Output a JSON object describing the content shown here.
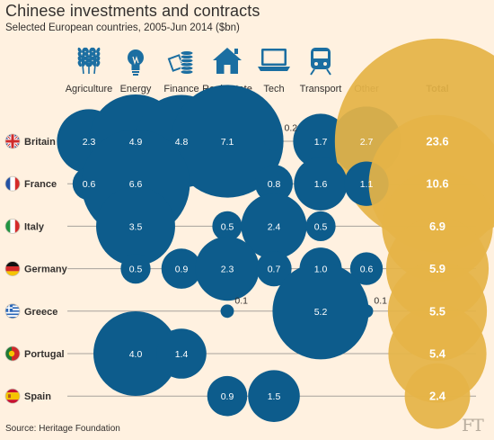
{
  "title": "Chinese investments and contracts",
  "subtitle": "Selected European countries, 2005-Jun 2014 ($bn)",
  "source": "Source: Heritage Foundation",
  "logo": "FT",
  "colors": {
    "background": "#fff1e0",
    "bubble": "#0d5c8c",
    "total_bubble": "#e5b447",
    "icon": "#1b6ea1",
    "line": "#a7a29c",
    "text": "#33302e",
    "logo": "#b8ad9e"
  },
  "chart_data": {
    "type": "bubble-matrix",
    "title": "Chinese investments and contracts",
    "subtitle": "Selected European countries, 2005-Jun 2014 ($bn)",
    "columns": [
      {
        "key": "agriculture",
        "label": "Agriculture",
        "icon": "wheat-icon"
      },
      {
        "key": "energy",
        "label": "Energy",
        "icon": "lightbulb-icon"
      },
      {
        "key": "finance",
        "label": "Finance",
        "icon": "money-icon"
      },
      {
        "key": "real_estate",
        "label": "Real estate",
        "icon": "house-icon"
      },
      {
        "key": "tech",
        "label": "Tech",
        "icon": "laptop-icon"
      },
      {
        "key": "transport",
        "label": "Transport",
        "icon": "train-icon"
      },
      {
        "key": "other",
        "label": "Other",
        "icon": ""
      },
      {
        "key": "total",
        "label": "Total",
        "icon": ""
      }
    ],
    "rows": [
      {
        "country": "Britain",
        "flag": "uk-flag-icon",
        "values": {
          "agriculture": 2.3,
          "energy": 4.9,
          "finance": 4.8,
          "real_estate": 7.1,
          "tech": 0.2,
          "transport": 1.7,
          "other": 2.7,
          "total": 23.6
        }
      },
      {
        "country": "France",
        "flag": "france-flag-icon",
        "values": {
          "agriculture": 0.6,
          "energy": 6.6,
          "tech": 0.8,
          "transport": 1.6,
          "other": 1.1,
          "total": 10.6
        }
      },
      {
        "country": "Italy",
        "flag": "italy-flag-icon",
        "values": {
          "energy": 3.5,
          "real_estate": 0.5,
          "tech": 2.4,
          "transport": 0.5,
          "total": 6.9
        }
      },
      {
        "country": "Germany",
        "flag": "germany-flag-icon",
        "values": {
          "energy": 0.5,
          "finance": 0.9,
          "real_estate": 2.3,
          "tech": 0.7,
          "transport": 1.0,
          "other": 0.6,
          "total": 5.9
        }
      },
      {
        "country": "Greece",
        "flag": "greece-flag-icon",
        "values": {
          "real_estate": 0.1,
          "transport": 5.2,
          "other": 0.1,
          "total": 5.5
        }
      },
      {
        "country": "Portugal",
        "flag": "portugal-flag-icon",
        "values": {
          "energy": 4.0,
          "finance": 1.4,
          "total": 5.4
        }
      },
      {
        "country": "Spain",
        "flag": "spain-flag-icon",
        "values": {
          "real_estate": 0.9,
          "tech": 1.5,
          "total": 2.4
        }
      }
    ]
  }
}
